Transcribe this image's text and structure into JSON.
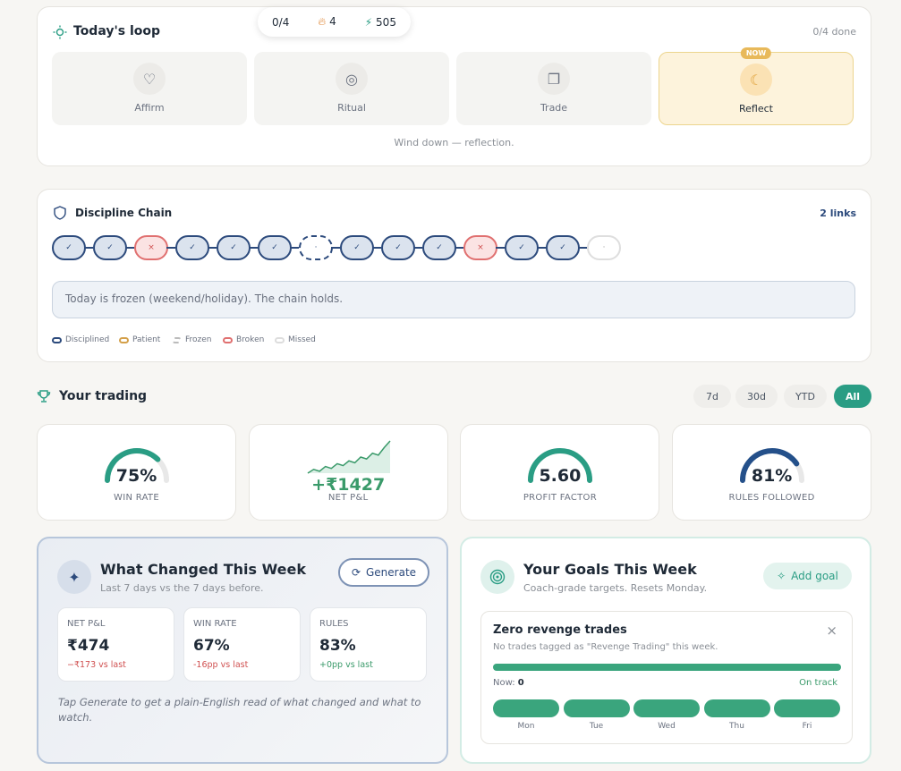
{
  "header": {
    "progress": "0/4",
    "streak": "4",
    "points": "505"
  },
  "loop": {
    "title": "Today's loop",
    "status": "0/4 done",
    "steps": [
      {
        "label": "Affirm"
      },
      {
        "label": "Ritual"
      },
      {
        "label": "Trade"
      },
      {
        "label": "Reflect",
        "badge": "NOW"
      }
    ],
    "caption": "Wind down — reflection."
  },
  "chain": {
    "title": "Discipline Chain",
    "count": "2 links",
    "links": [
      {
        "symbol": "✓",
        "kind": "Disciplined"
      },
      {
        "symbol": "✓",
        "kind": "Disciplined"
      },
      {
        "symbol": "×",
        "kind": "Broken"
      },
      {
        "symbol": "✓",
        "kind": "Disciplined"
      },
      {
        "symbol": "✓",
        "kind": "Disciplined"
      },
      {
        "symbol": "✓",
        "kind": "Disciplined"
      },
      {
        "symbol": "·",
        "kind": "Frozen"
      },
      {
        "symbol": "✓",
        "kind": "Disciplined"
      },
      {
        "symbol": "✓",
        "kind": "Disciplined"
      },
      {
        "symbol": "✓",
        "kind": "Disciplined"
      },
      {
        "symbol": "×",
        "kind": "Broken"
      },
      {
        "symbol": "✓",
        "kind": "Disciplined"
      },
      {
        "symbol": "✓",
        "kind": "Disciplined"
      },
      {
        "symbol": "·",
        "kind": "Missed"
      }
    ],
    "message": "Today is frozen (weekend/holiday). The chain holds.",
    "legend": [
      "Disciplined",
      "Patient",
      "Frozen",
      "Broken",
      "Missed"
    ]
  },
  "trading": {
    "title": "Your trading",
    "ranges": [
      "7d",
      "30d",
      "YTD",
      "All"
    ],
    "active_range": 3,
    "stats": [
      {
        "value": 75,
        "max": 100,
        "value_label": "75%",
        "label": "WIN RATE",
        "color": "#2a9d84"
      },
      {
        "sparkline": [
          0,
          4,
          2,
          7,
          5,
          10,
          8,
          13,
          11,
          17,
          15,
          21,
          19,
          27,
          34
        ],
        "value_label": "+₹1427",
        "label": "NET P&L",
        "color": "#3a9a6a"
      },
      {
        "value": 5.6,
        "max": 5.6,
        "value_label": "5.60",
        "label": "PROFIT FACTOR",
        "color": "#2a9d84"
      },
      {
        "value": 81,
        "max": 100,
        "value_label": "81%",
        "label": "RULES FOLLOWED",
        "color": "#24508a"
      }
    ]
  },
  "week": {
    "title": "What Changed This Week",
    "subtitle": "Last 7 days vs the 7 days before.",
    "button": "Generate",
    "metrics": [
      {
        "label": "NET P&L",
        "value": "₹474",
        "delta": "−₹173 vs last"
      },
      {
        "label": "WIN RATE",
        "value": "67%",
        "delta": "-16pp vs last"
      },
      {
        "label": "RULES",
        "value": "83%",
        "delta": "+0pp vs last"
      }
    ],
    "note": "Tap Generate to get a plain-English read of what changed and what to watch."
  },
  "goals": {
    "title": "Your Goals This Week",
    "subtitle": "Coach-grade targets. Resets Monday.",
    "button": "Add goal",
    "goal": {
      "title": "Zero revenge trades",
      "description": "No trades tagged as \"Revenge Trading\" this week.",
      "now_label": "Now:",
      "now": "0",
      "status": "On track",
      "days": [
        "Mon",
        "Tue",
        "Wed",
        "Thu",
        "Fri"
      ]
    }
  }
}
